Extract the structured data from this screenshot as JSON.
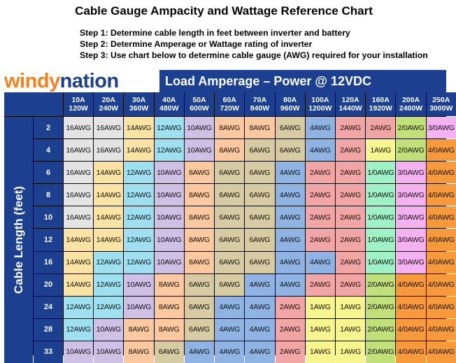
{
  "title": "Cable Gauge Ampacity and Wattage Reference Chart",
  "steps": [
    "Step 1: Determine cable length in feet between inverter and battery",
    "Step 2: Determine Amperage or Wattage rating of inverter",
    "Step 3: Use chart below to determine cable gauge (AWG) required for your installation"
  ],
  "logo": {
    "part1": "windy",
    "part2": "nation"
  },
  "header": "Load Amperage – Power @ 12VDC",
  "y_axis_label": "Cable Length (feet)",
  "columns": [
    {
      "amps": "10A",
      "watts": "120W"
    },
    {
      "amps": "20A",
      "watts": "240W"
    },
    {
      "amps": "30A",
      "watts": "360W"
    },
    {
      "amps": "40A",
      "watts": "480W"
    },
    {
      "amps": "50A",
      "watts": "600W"
    },
    {
      "amps": "60A",
      "watts": "720W"
    },
    {
      "amps": "70A",
      "watts": "840W"
    },
    {
      "amps": "80A",
      "watts": "960W"
    },
    {
      "amps": "100A",
      "watts": "1200W"
    },
    {
      "amps": "120A",
      "watts": "1440W"
    },
    {
      "amps": "160A",
      "watts": "1920W"
    },
    {
      "amps": "200A",
      "watts": "2400W"
    },
    {
      "amps": "250A",
      "watts": "3000W"
    }
  ],
  "rows": [
    {
      "length": "2",
      "cells": [
        "16AWG",
        "16AWG",
        "14AWG",
        "12AWG",
        "10AWG",
        "8AWG",
        "8AWG",
        "6AWG",
        "4AWG",
        "2AWG",
        "2AWG",
        "2/0AWG",
        "3/0AWG"
      ]
    },
    {
      "length": "4",
      "cells": [
        "16AWG",
        "16AWG",
        "14AWG",
        "12AWG",
        "10AWG",
        "8AWG",
        "6AWG",
        "6AWG",
        "4AWG",
        "2AWG",
        "1AWG",
        "2/0AWG",
        "4/0AWG"
      ]
    },
    {
      "length": "6",
      "cells": [
        "16AWG",
        "14AWG",
        "12AWG",
        "10AWG",
        "8AWG",
        "6AWG",
        "6AWG",
        "4AWG",
        "2AWG",
        "2AWG",
        "1/0AWG",
        "3/0AWG",
        "4/0AWG"
      ]
    },
    {
      "length": "8",
      "cells": [
        "16AWG",
        "14AWG",
        "12AWG",
        "10AWG",
        "8AWG",
        "6AWG",
        "6AWG",
        "4AWG",
        "2AWG",
        "2AWG",
        "1/0AWG",
        "3/0AWG",
        "4/0AWG"
      ]
    },
    {
      "length": "10",
      "cells": [
        "16AWG",
        "14AWG",
        "12AWG",
        "10AWG",
        "8AWG",
        "6AWG",
        "6AWG",
        "4AWG",
        "2AWG",
        "2AWG",
        "1/0AWG",
        "3/0AWG",
        "4/0AWG"
      ]
    },
    {
      "length": "12",
      "cells": [
        "14AWG",
        "14AWG",
        "12AWG",
        "10AWG",
        "8AWG",
        "6AWG",
        "6AWG",
        "4AWG",
        "2AWG",
        "2AWG",
        "1/0AWG",
        "3/0AWG",
        "4/0AWG"
      ]
    },
    {
      "length": "16",
      "cells": [
        "14AWG",
        "12AWG",
        "12AWG",
        "10AWG",
        "8AWG",
        "6AWG",
        "6AWG",
        "4AWG",
        "4AWG",
        "2AWG",
        "1/0AWG",
        "3/0AWG",
        "4/0AWG"
      ]
    },
    {
      "length": "20",
      "cells": [
        "14AWG",
        "12AWG",
        "10AWG",
        "8AWG",
        "6AWG",
        "6AWG",
        "4AWG",
        "4AWG",
        "2AWG",
        "2AWG",
        "2/0AWG",
        "4/0AWG",
        "4/0AWG"
      ]
    },
    {
      "length": "24",
      "cells": [
        "12AWG",
        "12AWG",
        "10AWG",
        "8AWG",
        "6AWG",
        "4AWG",
        "4AWG",
        "2AWG",
        "1AWG",
        "1AWG",
        "2/0AWG",
        "4/0AWG",
        "4/0AWG"
      ]
    },
    {
      "length": "28",
      "cells": [
        "12AWG",
        "10AWG",
        "8AWG",
        "8AWG",
        "6AWG",
        "4AWG",
        "4AWG",
        "2AWG",
        "1AWG",
        "1AWG",
        "2/0AWG",
        "4/0AWG",
        "4/0AWG"
      ]
    },
    {
      "length": "33",
      "cells": [
        "10AWG",
        "10AWG",
        "8AWG",
        "6AWG",
        "4AWG",
        "4AWG",
        "4AWG",
        "2AWG",
        "1AWG",
        "1AWG",
        "2/0AWG",
        "4/0AWG",
        "4/0AWG"
      ]
    }
  ],
  "gauge_colors": {
    "16AWG": "#e4e4e4",
    "14AWG": "#fbe3a4",
    "12AWG": "#9ee0f0",
    "10AWG": "#cfc0e6",
    "8AWG": "#fbc8a0",
    "6AWG": "#d7cba4",
    "4AWG": "#8fb4e3",
    "2AWG": "#f2a5a5",
    "1AWG": "#f7f58e",
    "1/0AWG": "#9ff2c6",
    "2/0AWG": "#c2e07a",
    "3/0AWG": "#f5b2f0",
    "4/0AWG": "#f79a3c"
  }
}
